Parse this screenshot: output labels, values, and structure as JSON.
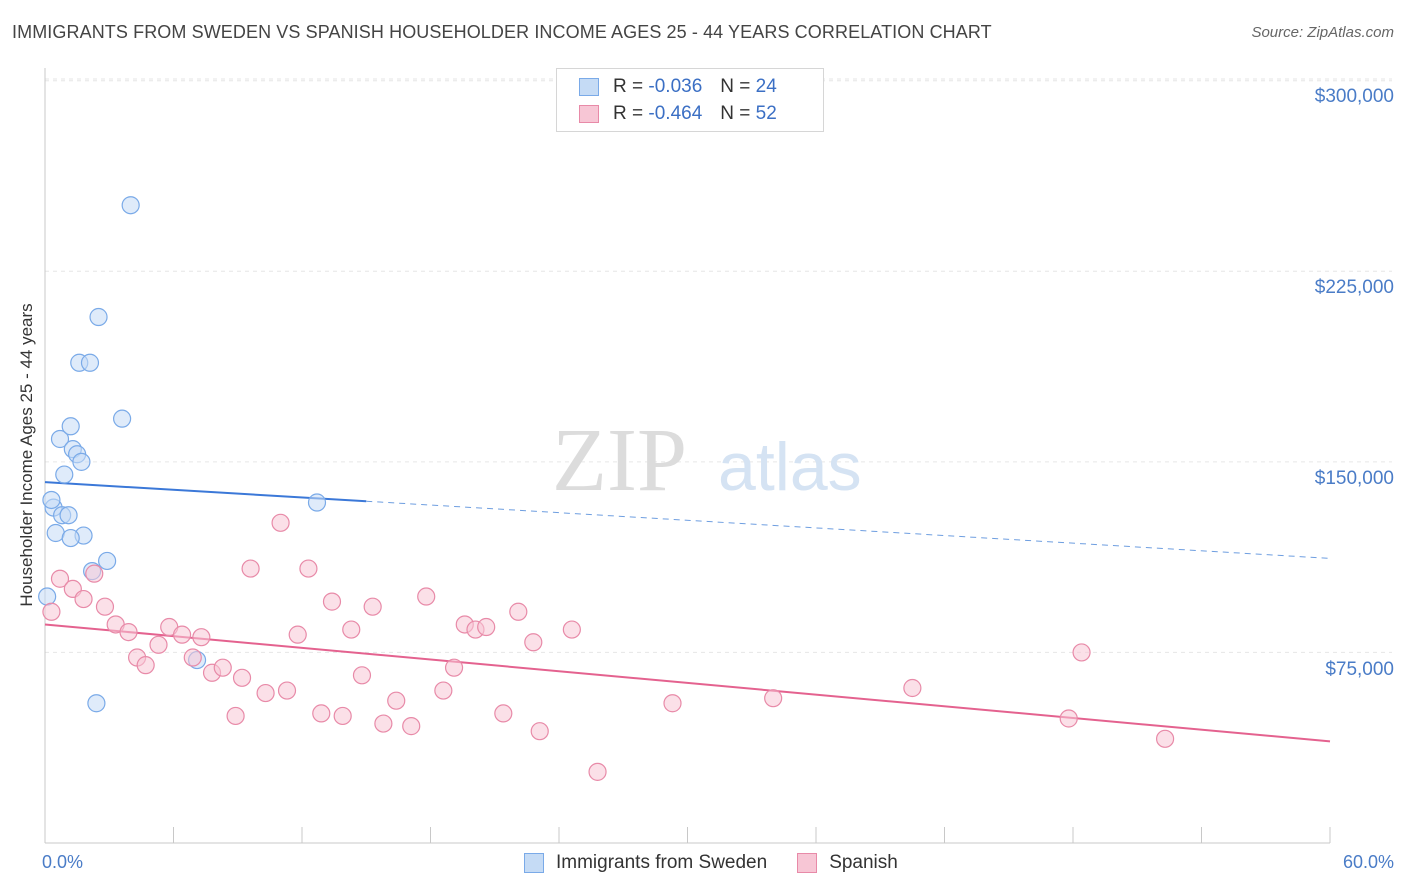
{
  "title": "IMMIGRANTS FROM SWEDEN VS SPANISH HOUSEHOLDER INCOME AGES 25 - 44 YEARS CORRELATION CHART",
  "source": "Source: ZipAtlas.com",
  "watermark": {
    "zip": "ZIP",
    "atlas": "atlas"
  },
  "legend_top": {
    "rows": [
      {
        "r_label": "R =",
        "r_value": "-0.036",
        "n_label": "N =",
        "n_value": "24"
      },
      {
        "r_label": "R =",
        "r_value": "-0.464",
        "n_label": "N =",
        "n_value": "52"
      }
    ]
  },
  "legend_bottom": [
    "Immigrants from Sweden",
    "Spanish"
  ],
  "chart_data": {
    "type": "scatter",
    "xlabel": "",
    "ylabel": "Householder Income Ages 25 - 44 years",
    "x_tick_labels": {
      "min": "0.0%",
      "max": "60.0%"
    },
    "y_tick_labels": [
      "$300,000",
      "$225,000",
      "$150,000",
      "$75,000"
    ],
    "y_ticks": [
      300000,
      225000,
      150000,
      75000
    ],
    "xlim": [
      0,
      60
    ],
    "ylim": [
      0,
      305000
    ],
    "grid": true,
    "legend_placement": "top-center",
    "series": [
      {
        "name": "Immigrants from Sweden",
        "color": "#7aaae8",
        "fill": "#c5dbf5",
        "trend": {
          "x0": 0,
          "y0": 142000,
          "x1": 15,
          "y1": 134500,
          "dash_to": 60,
          "dash_y": 112000
        },
        "points": [
          [
            0.1,
            97000
          ],
          [
            0.4,
            132000
          ],
          [
            0.3,
            135000
          ],
          [
            0.5,
            122000
          ],
          [
            0.8,
            129000
          ],
          [
            0.9,
            145000
          ],
          [
            0.7,
            159000
          ],
          [
            1.1,
            129000
          ],
          [
            1.2,
            164000
          ],
          [
            1.3,
            155000
          ],
          [
            1.5,
            153000
          ],
          [
            1.7,
            150000
          ],
          [
            1.6,
            189000
          ],
          [
            2.1,
            189000
          ],
          [
            1.8,
            121000
          ],
          [
            2.2,
            107000
          ],
          [
            2.4,
            55000
          ],
          [
            2.5,
            207000
          ],
          [
            2.9,
            111000
          ],
          [
            3.6,
            167000
          ],
          [
            4.0,
            251000
          ],
          [
            7.1,
            72000
          ],
          [
            12.7,
            134000
          ],
          [
            1.2,
            120000
          ]
        ]
      },
      {
        "name": "Spanish",
        "color": "#e88aa8",
        "fill": "#f7c6d5",
        "trend": {
          "x0": 0,
          "y0": 86000,
          "x1": 60,
          "y1": 40000
        },
        "points": [
          [
            0.3,
            91000
          ],
          [
            0.7,
            104000
          ],
          [
            1.3,
            100000
          ],
          [
            1.8,
            96000
          ],
          [
            2.3,
            106000
          ],
          [
            2.8,
            93000
          ],
          [
            3.3,
            86000
          ],
          [
            3.9,
            83000
          ],
          [
            4.3,
            73000
          ],
          [
            4.7,
            70000
          ],
          [
            5.3,
            78000
          ],
          [
            5.8,
            85000
          ],
          [
            6.4,
            82000
          ],
          [
            6.9,
            73000
          ],
          [
            7.3,
            81000
          ],
          [
            7.8,
            67000
          ],
          [
            8.3,
            69000
          ],
          [
            8.9,
            50000
          ],
          [
            9.2,
            65000
          ],
          [
            9.6,
            108000
          ],
          [
            10.3,
            59000
          ],
          [
            11.0,
            126000
          ],
          [
            11.3,
            60000
          ],
          [
            11.8,
            82000
          ],
          [
            12.3,
            108000
          ],
          [
            12.9,
            51000
          ],
          [
            13.4,
            95000
          ],
          [
            13.9,
            50000
          ],
          [
            14.3,
            84000
          ],
          [
            14.8,
            66000
          ],
          [
            15.3,
            93000
          ],
          [
            15.8,
            47000
          ],
          [
            16.4,
            56000
          ],
          [
            17.1,
            46000
          ],
          [
            17.8,
            97000
          ],
          [
            18.6,
            60000
          ],
          [
            19.1,
            69000
          ],
          [
            19.6,
            86000
          ],
          [
            20.1,
            84000
          ],
          [
            20.6,
            85000
          ],
          [
            21.4,
            51000
          ],
          [
            22.1,
            91000
          ],
          [
            22.8,
            79000
          ],
          [
            23.1,
            44000
          ],
          [
            24.6,
            84000
          ],
          [
            25.8,
            28000
          ],
          [
            29.3,
            55000
          ],
          [
            34.0,
            57000
          ],
          [
            40.5,
            61000
          ],
          [
            47.8,
            49000
          ],
          [
            48.4,
            75000
          ],
          [
            52.3,
            41000
          ]
        ]
      }
    ]
  }
}
